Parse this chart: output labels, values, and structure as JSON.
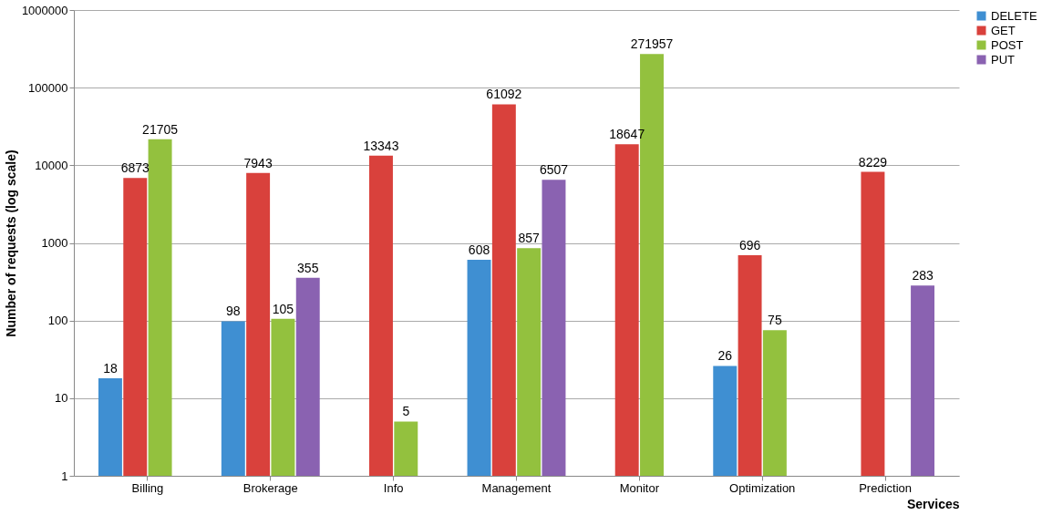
{
  "chart_data": {
    "type": "bar",
    "xlabel": "Services",
    "ylabel": "Number of requests (log scale)",
    "categories": [
      "Billing",
      "Brokerage",
      "Info",
      "Management",
      "Monitor",
      "Optimization",
      "Prediction"
    ],
    "series": [
      {
        "name": "DELETE",
        "color": "#3f8fd2",
        "values": [
          18,
          98,
          null,
          608,
          null,
          26,
          null
        ]
      },
      {
        "name": "GET",
        "color": "#d9413c",
        "values": [
          6873,
          7943,
          13343,
          61092,
          18647,
          696,
          8229
        ]
      },
      {
        "name": "POST",
        "color": "#93c13e",
        "values": [
          21705,
          105,
          5,
          857,
          271957,
          75,
          null
        ]
      },
      {
        "name": "PUT",
        "color": "#8a62b1",
        "values": [
          null,
          355,
          null,
          6507,
          null,
          null,
          283
        ]
      }
    ],
    "log": true,
    "ylim": [
      1,
      1000000
    ],
    "yticks": [
      1,
      10,
      100,
      1000,
      10000,
      100000,
      1000000
    ],
    "grid": "y",
    "legend": "right",
    "data_labels": true
  }
}
